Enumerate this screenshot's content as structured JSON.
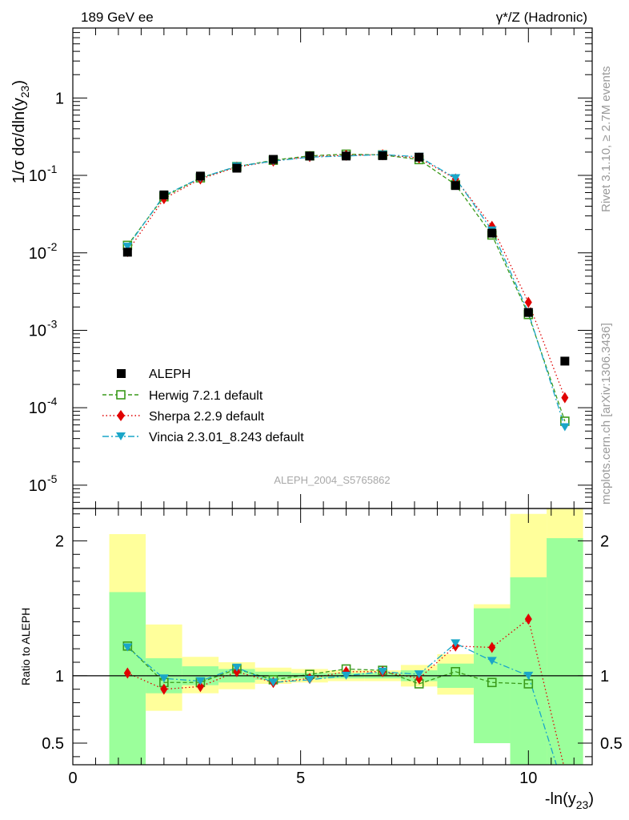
{
  "header": {
    "left": "189 GeV ee",
    "right": "γ*/Z (Hadronic)"
  },
  "side_text": {
    "rivet": "Rivet 3.1.10, ≥ 2.7M events",
    "mcplots": "mcplots.cern.ch [arXiv:1306.3436]"
  },
  "analysis_id": "ALEPH_2004_S5765862",
  "top_ylabel": "1/σ  dσ/dln(y23)",
  "bottom_ylabel": "Ratio to ALEPH",
  "xlabel": "-ln(y23)",
  "legend": [
    {
      "label": "ALEPH"
    },
    {
      "label": "Herwig 7.2.1 default"
    },
    {
      "label": "Sherpa 2.2.9 default"
    },
    {
      "label": "Vincia 2.3.01_8.243 default"
    }
  ],
  "colors": {
    "data": "#000000",
    "herwig": "#3a9a1a",
    "sherpa": "#e00000",
    "vincia": "#1aa6c8",
    "band_inner": "#9bff9b",
    "band_outer": "#ffff9b"
  },
  "chart_data": [
    {
      "type": "scatter",
      "panel": "main",
      "yscale": "log",
      "xlim": [
        0,
        11.4
      ],
      "ylim": [
        5e-06,
        8
      ],
      "xlabel": "-ln(y23)",
      "ylabel": "1/σ  dσ/dln(y23)",
      "x_ticks": [
        "0",
        "5",
        "10"
      ],
      "y_ticks": [
        "10^-5",
        "10^-4",
        "10^-3",
        "10^-2",
        "10^-1",
        "1"
      ],
      "series": [
        {
          "name": "ALEPH",
          "x": [
            1.2,
            2.0,
            2.8,
            3.6,
            4.4,
            5.2,
            6.0,
            6.8,
            7.6,
            8.4,
            9.2,
            10.0,
            10.8
          ],
          "values": [
            0.0102,
            0.056,
            0.098,
            0.124,
            0.161,
            0.178,
            0.178,
            0.18,
            0.172,
            0.074,
            0.018,
            0.0017,
            0.0004
          ]
        },
        {
          "name": "Herwig 7.2.1 default",
          "x": [
            1.2,
            2.0,
            2.8,
            3.6,
            4.4,
            5.2,
            6.0,
            6.8,
            7.6,
            8.4,
            9.2,
            10.0,
            10.8
          ],
          "values": [
            0.0125,
            0.053,
            0.093,
            0.13,
            0.157,
            0.179,
            0.188,
            0.184,
            0.16,
            0.076,
            0.017,
            0.0016,
            6.7e-05
          ]
        },
        {
          "name": "Sherpa 2.2.9 default",
          "x": [
            1.2,
            2.0,
            2.8,
            3.6,
            4.4,
            5.2,
            6.0,
            6.8,
            7.6,
            8.4,
            9.2,
            10.0,
            10.8
          ],
          "values": [
            0.0104,
            0.05,
            0.09,
            0.128,
            0.153,
            0.175,
            0.182,
            0.185,
            0.168,
            0.09,
            0.022,
            0.0023,
            0.000135
          ]
        },
        {
          "name": "Vincia 2.3.01_8.243 default",
          "x": [
            1.2,
            2.0,
            2.8,
            3.6,
            4.4,
            5.2,
            6.0,
            6.8,
            7.6,
            8.4,
            9.2,
            10.0,
            10.8
          ],
          "values": [
            0.012,
            0.055,
            0.093,
            0.131,
            0.153,
            0.172,
            0.178,
            0.186,
            0.174,
            0.092,
            0.0195,
            0.0017,
            5.6e-05
          ]
        }
      ]
    },
    {
      "type": "line",
      "panel": "ratio",
      "xlim": [
        0,
        11.4
      ],
      "ylim": [
        0.34,
        2.24
      ],
      "ylabel": "Ratio to ALEPH",
      "y_ticks": [
        "0.5",
        "1",
        "2"
      ],
      "bins": [
        [
          0.8,
          1.6
        ],
        [
          1.6,
          2.4
        ],
        [
          2.4,
          3.2
        ],
        [
          3.2,
          4.0
        ],
        [
          4.0,
          4.8
        ],
        [
          4.8,
          5.6
        ],
        [
          5.6,
          6.4
        ],
        [
          6.4,
          7.2
        ],
        [
          7.2,
          8.0
        ],
        [
          8.0,
          8.8
        ],
        [
          8.8,
          9.6
        ],
        [
          9.6,
          10.4
        ],
        [
          10.4,
          11.2
        ]
      ],
      "band_inner": [
        [
          0.34,
          1.62
        ],
        [
          0.87,
          1.13
        ],
        [
          0.93,
          1.07
        ],
        [
          0.95,
          1.05
        ],
        [
          0.97,
          1.03
        ],
        [
          0.98,
          1.02
        ],
        [
          0.98,
          1.02
        ],
        [
          0.98,
          1.02
        ],
        [
          0.96,
          1.04
        ],
        [
          0.91,
          1.09
        ],
        [
          0.5,
          1.5
        ],
        [
          0.34,
          1.73
        ],
        [
          0.34,
          2.02
        ]
      ],
      "band_outer": [
        [
          0.43,
          2.05
        ],
        [
          0.74,
          1.38
        ],
        [
          0.87,
          1.14
        ],
        [
          0.9,
          1.1
        ],
        [
          0.94,
          1.06
        ],
        [
          0.95,
          1.05
        ],
        [
          0.96,
          1.04
        ],
        [
          0.96,
          1.04
        ],
        [
          0.92,
          1.08
        ],
        [
          0.86,
          1.16
        ],
        [
          0.57,
          1.53
        ],
        [
          0.34,
          2.2
        ],
        [
          0.34,
          2.28
        ]
      ],
      "series": [
        {
          "name": "Herwig 7.2.1 default",
          "x": [
            1.2,
            2.0,
            2.8,
            3.6,
            4.4,
            5.2,
            6.0,
            6.8,
            7.6,
            8.4,
            9.2,
            10.0
          ],
          "values": [
            1.22,
            0.95,
            0.95,
            1.05,
            0.97,
            1.01,
            1.05,
            1.04,
            0.94,
            1.03,
            0.95,
            0.94
          ]
        },
        {
          "name": "Sherpa 2.2.9 default",
          "x": [
            1.2,
            2.0,
            2.8,
            3.6,
            4.4,
            5.2,
            6.0,
            6.8,
            7.6,
            8.4,
            9.2,
            10.0,
            10.8
          ],
          "values": [
            1.02,
            0.9,
            0.92,
            1.03,
            0.95,
            0.98,
            1.03,
            1.03,
            0.98,
            1.22,
            1.21,
            1.42,
            0.3
          ]
        },
        {
          "name": "Vincia 2.3.01_8.243 default",
          "x": [
            1.2,
            2.0,
            2.8,
            3.6,
            4.4,
            5.2,
            6.0,
            6.8,
            7.6,
            8.4,
            9.2,
            10.0,
            10.8
          ],
          "values": [
            1.21,
            0.98,
            0.96,
            1.06,
            0.95,
            0.97,
            1.0,
            1.03,
            1.01,
            1.24,
            1.11,
            1.0,
            0.14
          ]
        }
      ]
    }
  ]
}
